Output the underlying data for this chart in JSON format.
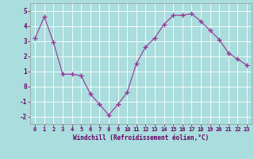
{
  "x": [
    0,
    1,
    2,
    3,
    4,
    5,
    6,
    7,
    8,
    9,
    10,
    11,
    12,
    13,
    14,
    15,
    16,
    17,
    18,
    19,
    20,
    21,
    22,
    23
  ],
  "y": [
    3.2,
    4.6,
    2.9,
    0.8,
    0.8,
    0.7,
    -0.5,
    -1.2,
    -1.9,
    -1.2,
    -0.4,
    1.5,
    2.6,
    3.2,
    4.1,
    4.7,
    4.7,
    4.8,
    4.3,
    3.7,
    3.1,
    2.2,
    1.8,
    1.4
  ],
  "line_color": "#993399",
  "marker": "+",
  "bg_color": "#aadddd",
  "grid_color": "#bbdddd",
  "xlabel": "Windchill (Refroidissement éolien,°C)",
  "xlabel_color": "#660066",
  "tick_color": "#660066",
  "border_color": "#999999",
  "ylim": [
    -2.5,
    5.5
  ],
  "xlim": [
    -0.5,
    23.5
  ],
  "yticks": [
    -2,
    -1,
    0,
    1,
    2,
    3,
    4,
    5
  ],
  "xticks": [
    0,
    1,
    2,
    3,
    4,
    5,
    6,
    7,
    8,
    9,
    10,
    11,
    12,
    13,
    14,
    15,
    16,
    17,
    18,
    19,
    20,
    21,
    22,
    23
  ],
  "tick_fontsize": 5.0,
  "xlabel_fontsize": 5.5,
  "ytick_fontsize": 5.5
}
